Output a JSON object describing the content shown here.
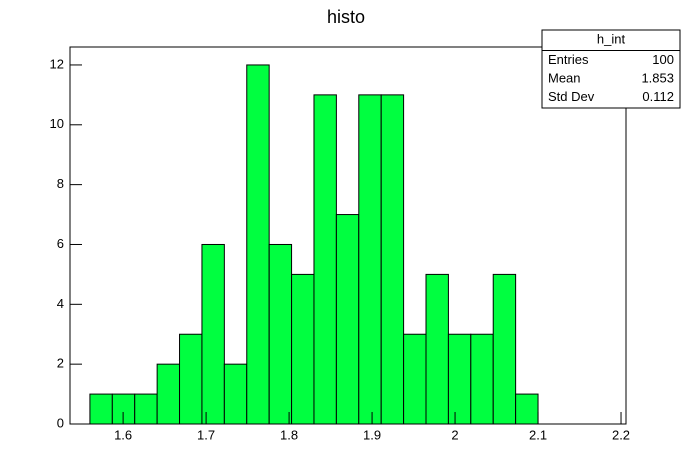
{
  "chart_data": {
    "type": "histogram",
    "title": "histo",
    "bins": [
      1.56,
      1.587,
      1.614,
      1.641,
      1.668,
      1.695,
      1.722,
      1.749,
      1.776,
      1.803,
      1.83,
      1.857,
      1.884,
      1.911,
      1.938,
      1.965,
      1.992,
      2.019,
      2.046,
      2.073,
      2.1
    ],
    "counts": [
      1,
      1,
      1,
      2,
      3,
      6,
      2,
      12,
      6,
      5,
      11,
      7,
      11,
      11,
      3,
      5,
      3,
      3,
      5,
      1
    ],
    "color": "#00ff40",
    "xlim": [
      1.536,
      2.206
    ],
    "xticks": [
      1.6,
      1.7,
      1.8,
      1.9,
      2,
      2.1,
      2.2
    ],
    "ylim": [
      0,
      12.6
    ],
    "yticks": [
      0,
      2,
      4,
      6,
      8,
      10,
      12
    ],
    "stats": {
      "title": "h_int",
      "rows": [
        [
          "Entries",
          100
        ],
        [
          "Mean",
          1.853
        ],
        [
          "Std Dev",
          0.112
        ]
      ]
    }
  }
}
